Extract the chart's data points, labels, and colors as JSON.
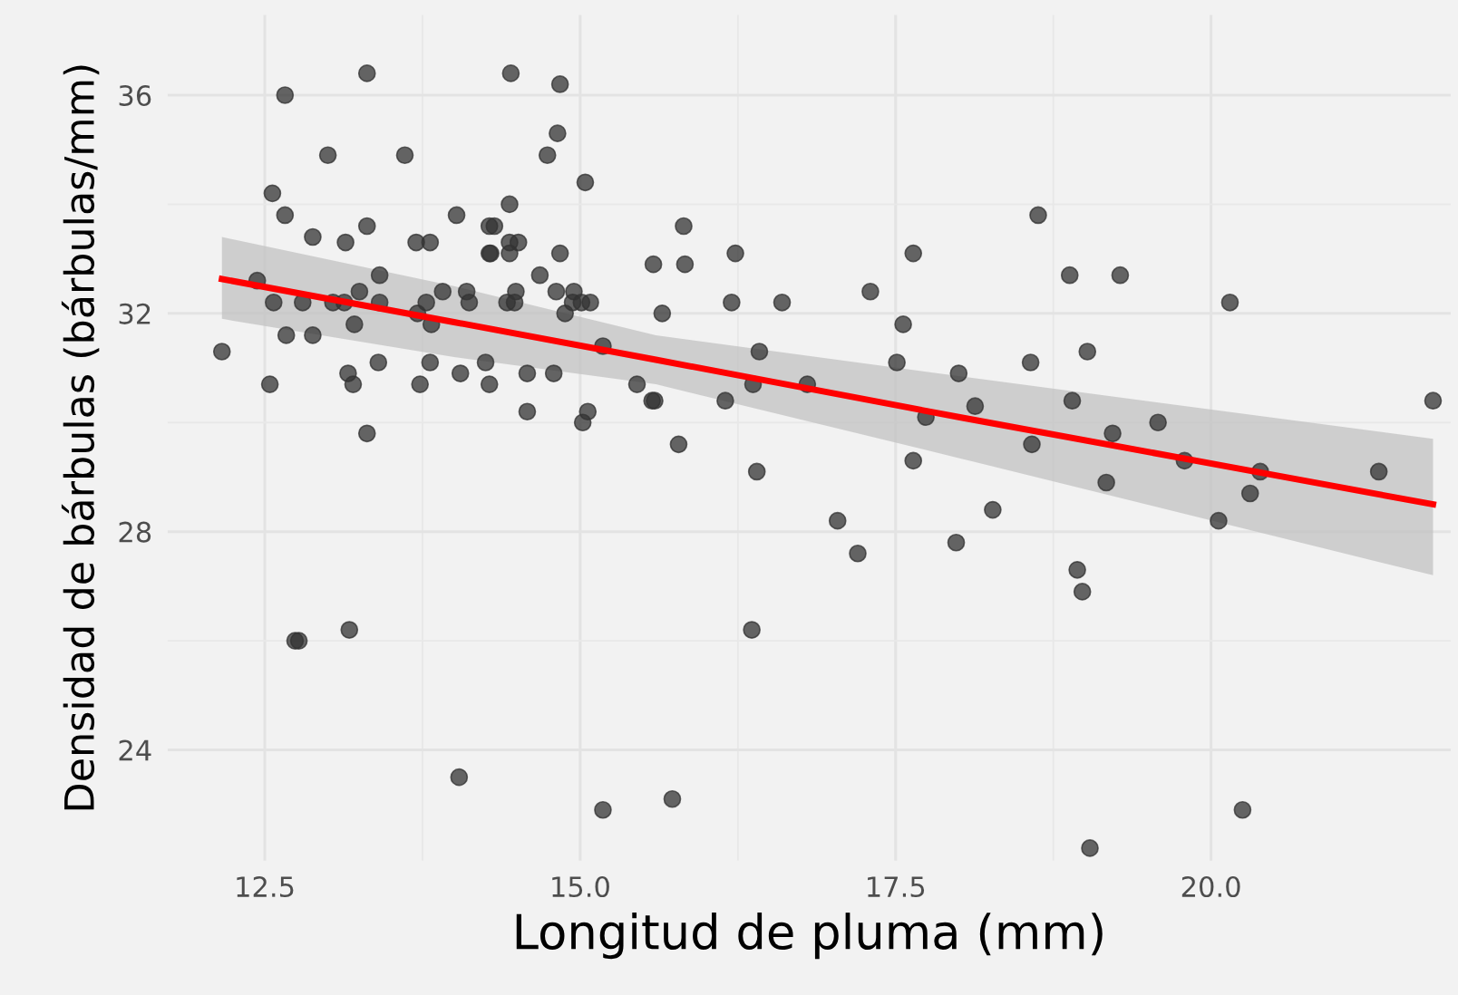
{
  "chart_data": {
    "type": "scatter",
    "xlabel": "Longitud de pluma (mm)",
    "ylabel": "Densidad de bárbulas (bárbulas/mm)",
    "xlim": [
      11.73,
      21.9
    ],
    "ylim": [
      21.97,
      37.47
    ],
    "xticks": [
      12.5,
      {
        "value": 15,
        "label": "15.0"
      },
      17.5,
      {
        "value": 20,
        "label": "20.0"
      }
    ],
    "yticks": [
      24,
      28,
      32,
      36
    ],
    "grid": true,
    "marker": "circle",
    "series": [
      {
        "color": "#333333",
        "x": [
          12.16,
          12.44,
          12.56,
          12.66,
          12.66,
          12.57,
          12.54,
          12.67,
          12.8,
          12.88,
          12.88,
          13.0,
          13.04,
          13.13,
          13.14,
          13.16,
          13.2,
          13.21,
          13.25,
          13.31,
          13.31,
          13.41,
          13.41,
          13.4,
          13.31,
          13.61,
          13.7,
          13.81,
          13.73,
          13.71,
          13.78,
          13.82,
          13.81,
          13.91,
          14.02,
          14.05,
          14.1,
          14.12,
          14.25,
          14.28,
          14.28,
          14.28,
          12.74,
          12.77,
          13.17,
          14.04,
          15.18,
          15.73,
          15.78,
          16.4,
          16.36,
          14.45,
          14.84,
          14.82,
          14.74,
          15.04,
          14.44,
          14.32,
          14.44,
          14.51,
          14.29,
          14.44,
          14.84,
          14.68,
          14.49,
          14.81,
          14.95,
          14.42,
          14.48,
          14.94,
          15.01,
          15.08,
          14.88,
          14.58,
          14.79,
          14.58,
          15.06,
          15.02,
          15.18,
          15.58,
          15.83,
          15.82,
          16.23,
          16.2,
          16.6,
          15.65,
          15.45,
          15.57,
          15.59,
          16.15,
          16.37,
          16.42,
          17.3,
          17.64,
          17.56,
          17.51,
          16.8,
          17.74,
          17.64,
          17.04,
          17.2,
          18.0,
          18.13,
          17.98,
          18.27,
          18.63,
          18.88,
          19.28,
          18.57,
          19.02,
          18.9,
          18.58,
          19.22,
          19.17,
          19.58,
          18.94,
          18.98,
          20.15,
          19.79,
          20.39,
          20.31,
          20.06,
          21.33,
          21.76,
          20.25,
          19.04
        ],
        "values": [
          31.3,
          32.6,
          34.2,
          33.8,
          36.0,
          32.2,
          30.7,
          31.6,
          32.2,
          33.4,
          31.6,
          34.9,
          32.2,
          32.2,
          33.3,
          30.9,
          30.7,
          31.8,
          32.4,
          33.6,
          36.4,
          32.7,
          32.2,
          31.1,
          29.8,
          34.9,
          33.3,
          33.3,
          30.7,
          32.0,
          32.2,
          31.8,
          31.1,
          32.4,
          33.8,
          30.9,
          32.4,
          32.2,
          31.1,
          33.6,
          30.7,
          33.1,
          26.0,
          26.0,
          26.2,
          23.5,
          22.9,
          23.1,
          29.6,
          29.1,
          26.2,
          36.4,
          36.2,
          35.3,
          34.9,
          34.4,
          34.0,
          33.6,
          33.3,
          33.3,
          33.1,
          33.1,
          33.1,
          32.7,
          32.4,
          32.4,
          32.4,
          32.2,
          32.2,
          32.2,
          32.2,
          32.2,
          32.0,
          30.9,
          30.9,
          30.2,
          30.2,
          30.0,
          31.4,
          32.9,
          32.9,
          33.6,
          33.1,
          32.2,
          32.2,
          32.0,
          30.7,
          30.4,
          30.4,
          30.4,
          30.7,
          31.3,
          32.4,
          33.1,
          31.8,
          31.1,
          30.7,
          30.1,
          29.3,
          28.2,
          27.6,
          30.9,
          30.3,
          27.8,
          28.4,
          33.8,
          32.7,
          32.7,
          31.1,
          31.3,
          30.4,
          29.6,
          29.8,
          28.9,
          30.0,
          27.3,
          26.9,
          32.2,
          29.3,
          29.1,
          28.7,
          28.2,
          29.1,
          30.4,
          22.9,
          22.2
        ]
      },
      {
        "type": "line",
        "marker": "none",
        "color": "#ff0000",
        "x": [
          12.16,
          14.0,
          15.6,
          18.0,
          21.76
        ],
        "values": [
          32.63,
          31.84,
          31.15,
          30.1,
          28.5
        ],
        "lower": [
          31.9,
          31.2,
          30.7,
          29.35,
          27.2
        ],
        "upper": [
          33.4,
          32.5,
          31.6,
          30.85,
          29.7
        ]
      }
    ]
  }
}
